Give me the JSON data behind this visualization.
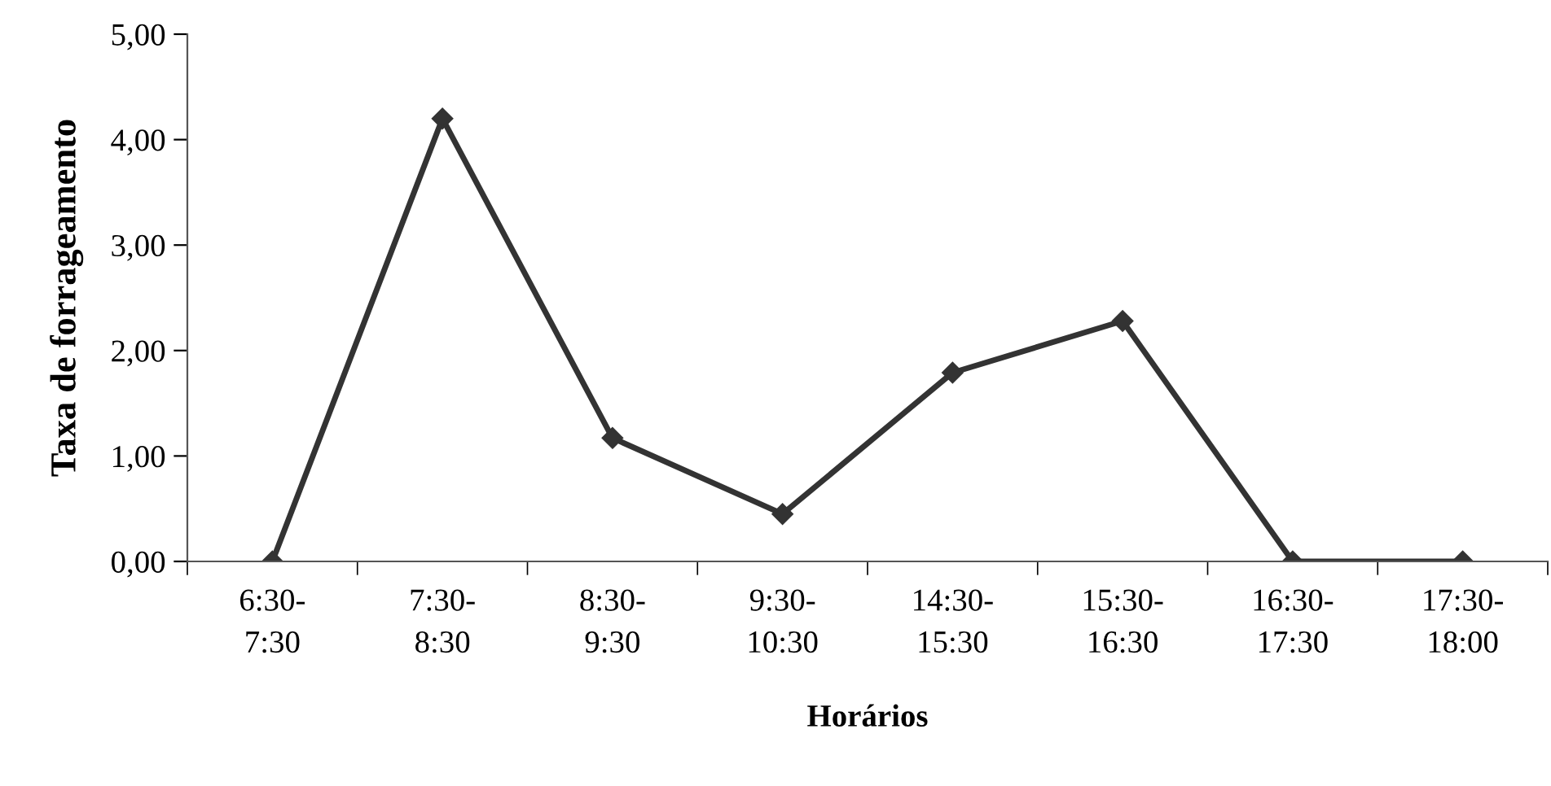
{
  "chart_data": {
    "type": "line",
    "xlabel": "Horários",
    "ylabel": "Taxa de forrageamento",
    "categories": [
      "6:30-\n7:30",
      "7:30-\n8:30",
      "8:30-\n9:30",
      "9:30-\n10:30",
      "14:30-\n15:30",
      "15:30-\n16:30",
      "16:30-\n17:30",
      "17:30-\n18:00"
    ],
    "series": [
      {
        "color": "#333333",
        "values": [
          0,
          4.2,
          1.17,
          0.45,
          1.79,
          2.28,
          0,
          0
        ]
      }
    ],
    "ylim": [
      0,
      5
    ],
    "yticks": [
      {
        "value": 0,
        "label": "0,00"
      },
      {
        "value": 1,
        "label": "1,00"
      },
      {
        "value": 2,
        "label": "2,00"
      },
      {
        "value": 3,
        "label": "3,00"
      },
      {
        "value": 4,
        "label": "4,00"
      },
      {
        "value": 5,
        "label": "5,00"
      }
    ],
    "marker": "diamond",
    "line_style": "solid",
    "grid": false,
    "legend": false
  }
}
